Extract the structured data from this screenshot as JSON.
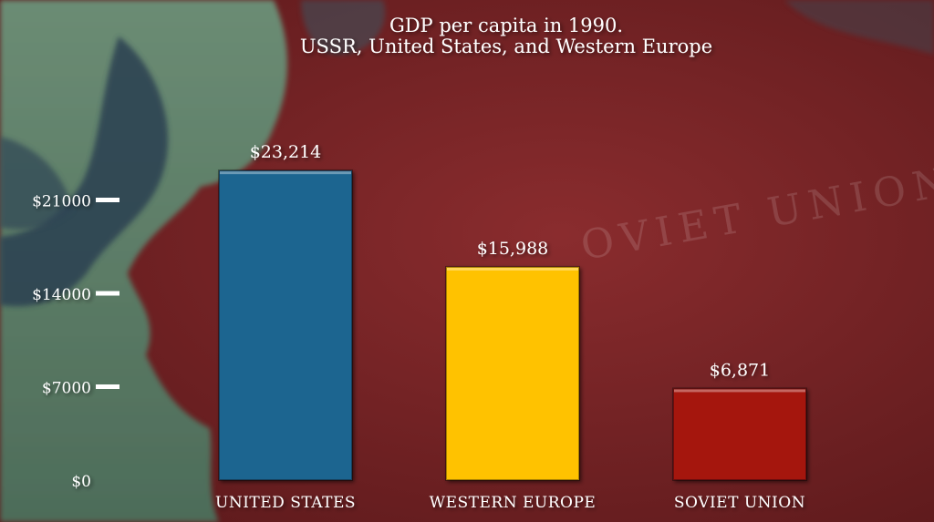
{
  "title_line1": "GDP per capita in 1990.",
  "title_line2": "USSR, United States, and Western Europe",
  "map_label": "OVIET UNION",
  "colors": {
    "background": "#7a2426",
    "land_green": "#5c7f67",
    "sea": "#25394a",
    "axis": "#ffffff",
    "text": "#ffffff"
  },
  "chart_data": {
    "type": "bar",
    "title": "GDP per capita in 1990. USSR, United States, and Western Europe",
    "xlabel": "",
    "ylabel": "",
    "categories": [
      "UNITED STATES",
      "WESTERN EUROPE",
      "SOVIET UNION"
    ],
    "values": [
      23214,
      15988,
      6871
    ],
    "value_labels": [
      "$23,214",
      "$15,988",
      "$6,871"
    ],
    "bar_colors": [
      "#1c6590",
      "#ffc200",
      "#a5180c"
    ],
    "ylim": [
      0,
      28000
    ],
    "yticks": [
      0,
      7000,
      14000,
      21000
    ],
    "ytick_labels": [
      "$0",
      "$7000",
      "$14000",
      "$21000"
    ],
    "grid": false,
    "legend": "none"
  }
}
